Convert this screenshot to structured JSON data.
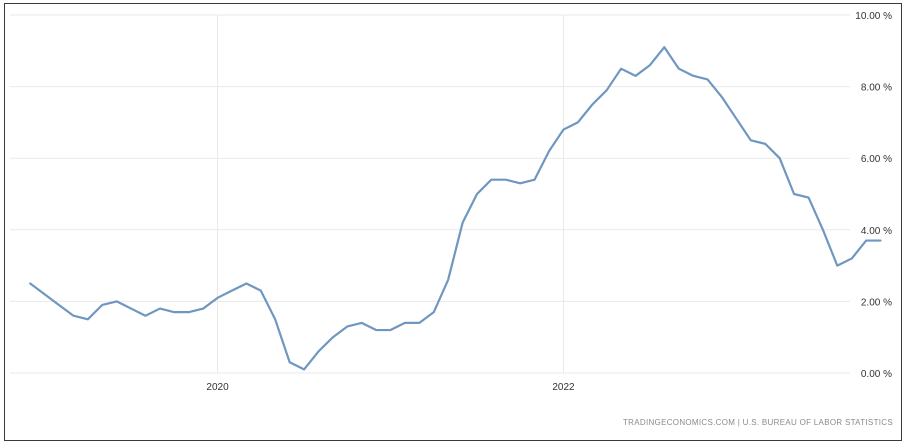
{
  "chart_data": {
    "type": "line",
    "title": "",
    "xlabel": "",
    "ylabel": "",
    "x_ticks": [
      {
        "label": "2020",
        "x": 2020.0
      },
      {
        "label": "2022",
        "x": 2022.0
      }
    ],
    "y_ticks": [
      {
        "label": "0.00 %",
        "value": 0
      },
      {
        "label": "2.00 %",
        "value": 2
      },
      {
        "label": "4.00 %",
        "value": 4
      },
      {
        "label": "6.00 %",
        "value": 6
      },
      {
        "label": "8.00 %",
        "value": 8
      },
      {
        "label": "10.00 %",
        "value": 10
      }
    ],
    "xlim": [
      2018.8,
      2023.83
    ],
    "ylim": [
      0,
      10
    ],
    "grid": true,
    "legend": "none",
    "source": "TRADINGECONOMICS.COM  |  U.S. BUREAU OF LABOR STATISTICS",
    "colors": {
      "line": "#6f97c0",
      "grid": "#e9e9e9",
      "frame": "#3a3a3a",
      "text": "#333333"
    },
    "series": [
      {
        "points": [
          [
            2018.917,
            2.5
          ],
          [
            2019.0,
            2.2
          ],
          [
            2019.083,
            1.9
          ],
          [
            2019.167,
            1.6
          ],
          [
            2019.25,
            1.5
          ],
          [
            2019.333,
            1.9
          ],
          [
            2019.417,
            2.0
          ],
          [
            2019.5,
            1.8
          ],
          [
            2019.583,
            1.6
          ],
          [
            2019.667,
            1.8
          ],
          [
            2019.75,
            1.7
          ],
          [
            2019.833,
            1.7
          ],
          [
            2019.917,
            1.8
          ],
          [
            2020.0,
            2.1
          ],
          [
            2020.083,
            2.3
          ],
          [
            2020.167,
            2.5
          ],
          [
            2020.25,
            2.3
          ],
          [
            2020.333,
            1.5
          ],
          [
            2020.417,
            0.3
          ],
          [
            2020.5,
            0.1
          ],
          [
            2020.583,
            0.6
          ],
          [
            2020.667,
            1.0
          ],
          [
            2020.75,
            1.3
          ],
          [
            2020.833,
            1.4
          ],
          [
            2020.917,
            1.2
          ],
          [
            2021.0,
            1.2
          ],
          [
            2021.083,
            1.4
          ],
          [
            2021.167,
            1.4
          ],
          [
            2021.25,
            1.7
          ],
          [
            2021.333,
            2.6
          ],
          [
            2021.417,
            4.2
          ],
          [
            2021.5,
            5.0
          ],
          [
            2021.583,
            5.4
          ],
          [
            2021.667,
            5.4
          ],
          [
            2021.75,
            5.3
          ],
          [
            2021.833,
            5.4
          ],
          [
            2021.917,
            6.2
          ],
          [
            2022.0,
            6.8
          ],
          [
            2022.083,
            7.0
          ],
          [
            2022.167,
            7.5
          ],
          [
            2022.25,
            7.9
          ],
          [
            2022.333,
            8.5
          ],
          [
            2022.417,
            8.3
          ],
          [
            2022.5,
            8.6
          ],
          [
            2022.583,
            9.1
          ],
          [
            2022.667,
            8.5
          ],
          [
            2022.75,
            8.3
          ],
          [
            2022.833,
            8.2
          ],
          [
            2022.917,
            7.7
          ],
          [
            2023.0,
            7.1
          ],
          [
            2023.083,
            6.5
          ],
          [
            2023.167,
            6.4
          ],
          [
            2023.25,
            6.0
          ],
          [
            2023.333,
            5.0
          ],
          [
            2023.417,
            4.9
          ],
          [
            2023.5,
            4.0
          ],
          [
            2023.583,
            3.0
          ],
          [
            2023.667,
            3.2
          ],
          [
            2023.75,
            3.7
          ],
          [
            2023.833,
            3.7
          ]
        ]
      }
    ]
  }
}
